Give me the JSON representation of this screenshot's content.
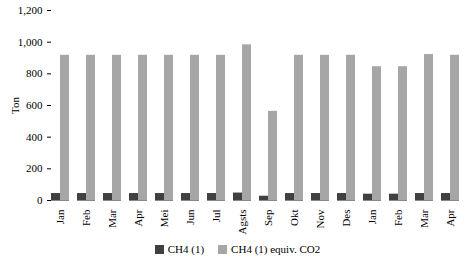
{
  "chart_data": {
    "type": "bar",
    "y_label": "Ton",
    "categories": [
      "Jan",
      "Feb",
      "Mar",
      "Apr",
      "Mei",
      "Jun",
      "Jul",
      "Agsts",
      "Sep",
      "Okt",
      "Nov",
      "Des",
      "Jan",
      "Feb",
      "Mar",
      "Apr"
    ],
    "series": [
      {
        "name": "CH4 (1)",
        "color": "#404040",
        "values": [
          44,
          44,
          44,
          44,
          44,
          44,
          44,
          47,
          27,
          44,
          44,
          44,
          40,
          40,
          44,
          44
        ]
      },
      {
        "name": "CH4 (1) equiv. CO2",
        "color": "#a6a6a6",
        "values": [
          917,
          917,
          917,
          917,
          917,
          917,
          917,
          983,
          563,
          917,
          917,
          917,
          845,
          845,
          922,
          917
        ]
      }
    ],
    "ylim": [
      0,
      1200
    ],
    "yticks": [
      0,
      200,
      400,
      600,
      800,
      1000,
      1200
    ],
    "grid": false,
    "legend": "bottom"
  }
}
